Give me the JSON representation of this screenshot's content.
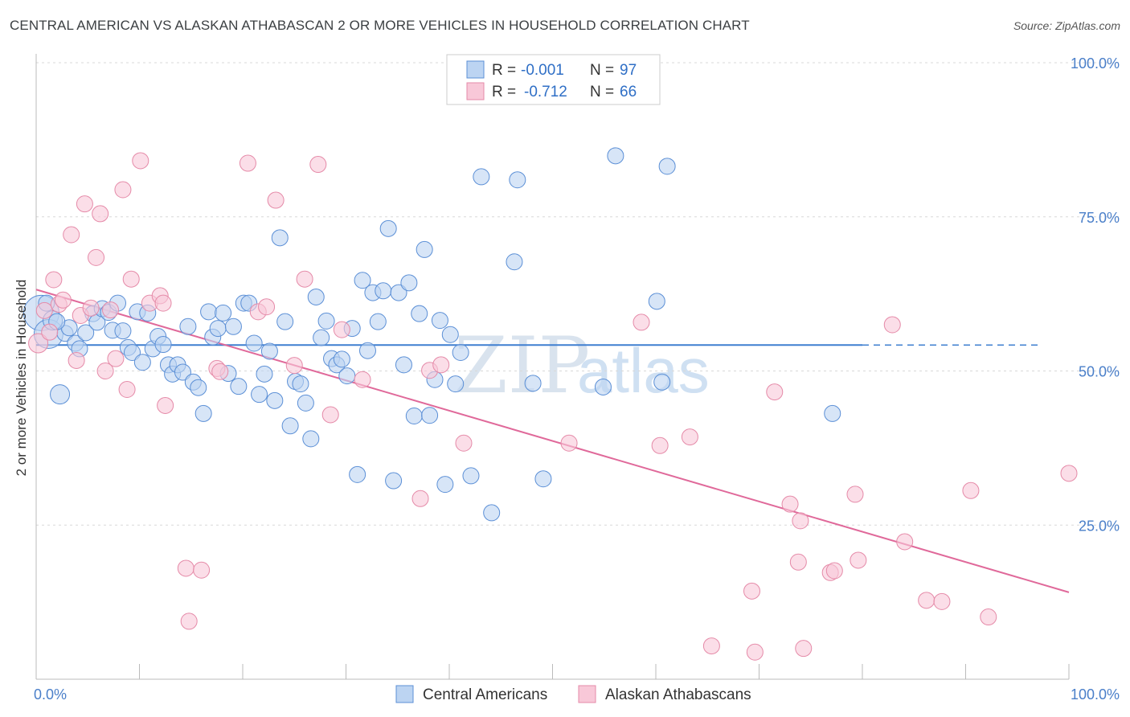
{
  "title": "CENTRAL AMERICAN VS ALASKAN ATHABASCAN 2 OR MORE VEHICLES IN HOUSEHOLD CORRELATION CHART",
  "source": "Source: ZipAtlas.com",
  "watermark": {
    "zip": "ZIP",
    "atlas": "atlas"
  },
  "colors": {
    "blue_fill": "#bcd4f2",
    "blue_stroke": "#5b8fd6",
    "blue_line": "#3f7fd0",
    "pink_fill": "#f8c8d8",
    "pink_stroke": "#e58aa8",
    "pink_line": "#e0699a",
    "grid": "#d8d8d8",
    "axis_label": "#4a7fc9"
  },
  "legend": {
    "rows": [
      {
        "r_label": "R =",
        "r_value": "-0.001",
        "n_label": "N =",
        "n_value": "97"
      },
      {
        "r_label": "R =",
        "r_value": "-0.712",
        "n_label": "N =",
        "n_value": "66"
      }
    ]
  },
  "bottom_legend": [
    "Central Americans",
    "Alaskan Athabascans"
  ],
  "chart_data": {
    "type": "scatter",
    "title": "CENTRAL AMERICAN VS ALASKAN ATHABASCAN 2 OR MORE VEHICLES IN HOUSEHOLD CORRELATION CHART",
    "xlabel": "",
    "ylabel": "2 or more Vehicles in Household",
    "xlim": [
      0,
      100
    ],
    "ylim": [
      0,
      100
    ],
    "x_tick_labels": [
      "0.0%",
      "100.0%"
    ],
    "y_ticks": [
      25,
      50,
      75,
      100
    ],
    "y_tick_labels": [
      "25.0%",
      "50.0%",
      "75.0%",
      "100.0%"
    ],
    "series": [
      {
        "name": "Central Americans",
        "color": "blue",
        "trend": {
          "x0": 0,
          "y0": 54.2,
          "x1": 80,
          "y1": 54.2,
          "dash_to": 97,
          "dash_y": 54.2
        },
        "points": [
          [
            0.5,
            59.4,
            22
          ],
          [
            1.2,
            56.0,
            18
          ],
          [
            1.6,
            58.2,
            12
          ],
          [
            2.3,
            46.2,
            12
          ],
          [
            2.8,
            56.1,
            10
          ],
          [
            3.2,
            57.0,
            10
          ],
          [
            3.8,
            54.5,
            10
          ],
          [
            4.2,
            53.6,
            10
          ],
          [
            4.8,
            56.2,
            10
          ],
          [
            5.5,
            59.3,
            10
          ],
          [
            5.9,
            57.9,
            10
          ],
          [
            6.4,
            60.1,
            10
          ],
          [
            7.0,
            59.5,
            10
          ],
          [
            7.4,
            56.6,
            10
          ],
          [
            7.9,
            61.0,
            10
          ],
          [
            8.4,
            56.5,
            10
          ],
          [
            8.9,
            53.8,
            10
          ],
          [
            9.3,
            53.0,
            10
          ],
          [
            9.8,
            59.6,
            10
          ],
          [
            10.3,
            51.4,
            10
          ],
          [
            10.8,
            59.4,
            10
          ],
          [
            11.3,
            53.6,
            10
          ],
          [
            11.8,
            55.6,
            10
          ],
          [
            12.3,
            54.3,
            10
          ],
          [
            12.8,
            51.0,
            10
          ],
          [
            13.2,
            49.5,
            10
          ],
          [
            13.7,
            51.0,
            10
          ],
          [
            14.2,
            49.8,
            10
          ],
          [
            14.7,
            57.2,
            10
          ],
          [
            15.2,
            48.2,
            10
          ],
          [
            15.7,
            47.3,
            10
          ],
          [
            16.2,
            43.1,
            10
          ],
          [
            16.7,
            59.6,
            10
          ],
          [
            17.1,
            55.5,
            10
          ],
          [
            17.6,
            56.9,
            10
          ],
          [
            18.1,
            59.4,
            10
          ],
          [
            18.6,
            49.6,
            10
          ],
          [
            19.1,
            57.2,
            10
          ],
          [
            19.6,
            47.5,
            10
          ],
          [
            20.1,
            61.0,
            10
          ],
          [
            20.6,
            61.0,
            10
          ],
          [
            21.1,
            54.5,
            10
          ],
          [
            21.6,
            46.2,
            10
          ],
          [
            22.1,
            49.5,
            10
          ],
          [
            22.6,
            53.2,
            10
          ],
          [
            23.1,
            45.2,
            10
          ],
          [
            23.6,
            71.6,
            10
          ],
          [
            24.1,
            58.0,
            10
          ],
          [
            24.6,
            41.1,
            10
          ],
          [
            25.1,
            48.3,
            10
          ],
          [
            25.6,
            47.9,
            10
          ],
          [
            26.1,
            44.8,
            10
          ],
          [
            26.6,
            39.0,
            10
          ],
          [
            27.1,
            62.0,
            10
          ],
          [
            27.6,
            55.4,
            10
          ],
          [
            28.1,
            58.1,
            10
          ],
          [
            28.6,
            52.0,
            10
          ],
          [
            29.1,
            51.0,
            10
          ],
          [
            29.6,
            51.9,
            10
          ],
          [
            30.1,
            49.2,
            10
          ],
          [
            30.6,
            56.9,
            10
          ],
          [
            31.1,
            33.2,
            10
          ],
          [
            31.6,
            64.7,
            10
          ],
          [
            32.1,
            53.3,
            10
          ],
          [
            32.6,
            62.7,
            10
          ],
          [
            33.1,
            58.0,
            10
          ],
          [
            33.6,
            63.0,
            10
          ],
          [
            34.1,
            73.1,
            10
          ],
          [
            34.6,
            32.2,
            10
          ],
          [
            35.1,
            62.7,
            10
          ],
          [
            35.6,
            51.0,
            10
          ],
          [
            36.1,
            64.3,
            10
          ],
          [
            36.6,
            42.7,
            10
          ],
          [
            37.1,
            59.3,
            10
          ],
          [
            37.6,
            69.7,
            10
          ],
          [
            38.1,
            42.8,
            10
          ],
          [
            38.6,
            48.6,
            10
          ],
          [
            39.1,
            58.2,
            10
          ],
          [
            39.6,
            31.6,
            10
          ],
          [
            40.1,
            55.9,
            10
          ],
          [
            40.6,
            47.9,
            10
          ],
          [
            41.1,
            53.0,
            10
          ],
          [
            42.1,
            33.0,
            10
          ],
          [
            43.1,
            81.5,
            10
          ],
          [
            44.1,
            27.0,
            10
          ],
          [
            46.6,
            81.0,
            10
          ],
          [
            46.3,
            67.7,
            10
          ],
          [
            48.1,
            48.0,
            10
          ],
          [
            49.1,
            32.5,
            10
          ],
          [
            54.9,
            47.4,
            10
          ],
          [
            56.1,
            84.9,
            10
          ],
          [
            60.1,
            61.3,
            10
          ],
          [
            60.6,
            48.2,
            10
          ],
          [
            61.1,
            83.2,
            10
          ],
          [
            77.1,
            43.1,
            10
          ],
          [
            1.0,
            61.0,
            10
          ],
          [
            2.0,
            58.0,
            10
          ]
        ]
      },
      {
        "name": "Alaskan Athabascans",
        "color": "pink",
        "trend": {
          "x0": 0,
          "y0": 63.2,
          "x1": 100,
          "y1": 14.1
        },
        "points": [
          [
            0.2,
            54.5,
            12
          ],
          [
            0.8,
            59.8,
            10
          ],
          [
            1.3,
            56.3,
            10
          ],
          [
            1.7,
            64.8,
            10
          ],
          [
            2.2,
            60.8,
            10
          ],
          [
            2.6,
            61.5,
            10
          ],
          [
            3.4,
            72.1,
            10
          ],
          [
            3.9,
            51.7,
            10
          ],
          [
            4.3,
            59.0,
            10
          ],
          [
            4.7,
            77.1,
            10
          ],
          [
            5.3,
            60.2,
            10
          ],
          [
            5.8,
            68.4,
            10
          ],
          [
            6.2,
            75.5,
            10
          ],
          [
            6.7,
            50.0,
            10
          ],
          [
            7.2,
            59.9,
            10
          ],
          [
            7.7,
            52.0,
            10
          ],
          [
            8.4,
            79.4,
            10
          ],
          [
            8.8,
            47.0,
            10
          ],
          [
            9.2,
            64.9,
            10
          ],
          [
            10.1,
            84.1,
            10
          ],
          [
            11.0,
            61.0,
            10
          ],
          [
            12.0,
            62.2,
            10
          ],
          [
            12.3,
            61.0,
            10
          ],
          [
            12.5,
            44.4,
            10
          ],
          [
            14.5,
            18.0,
            10
          ],
          [
            14.8,
            9.4,
            10
          ],
          [
            16.0,
            17.7,
            10
          ],
          [
            17.5,
            50.4,
            10
          ],
          [
            17.8,
            49.9,
            10
          ],
          [
            20.5,
            83.7,
            10
          ],
          [
            21.5,
            59.6,
            10
          ],
          [
            22.3,
            60.4,
            10
          ],
          [
            23.2,
            77.7,
            10
          ],
          [
            25.0,
            50.9,
            10
          ],
          [
            26.0,
            64.9,
            10
          ],
          [
            27.3,
            83.5,
            10
          ],
          [
            28.5,
            42.9,
            10
          ],
          [
            29.6,
            56.7,
            10
          ],
          [
            31.6,
            48.6,
            10
          ],
          [
            37.2,
            29.3,
            10
          ],
          [
            38.1,
            50.1,
            10
          ],
          [
            39.2,
            51.0,
            10
          ],
          [
            41.4,
            38.3,
            10
          ],
          [
            51.6,
            38.3,
            10
          ],
          [
            58.6,
            57.9,
            10
          ],
          [
            60.4,
            37.9,
            10
          ],
          [
            63.3,
            39.3,
            10
          ],
          [
            65.4,
            5.4,
            10
          ],
          [
            69.3,
            14.3,
            10
          ],
          [
            69.6,
            4.4,
            10
          ],
          [
            71.5,
            46.6,
            10
          ],
          [
            73.0,
            28.4,
            10
          ],
          [
            73.8,
            19.0,
            10
          ],
          [
            74.0,
            25.7,
            10
          ],
          [
            74.3,
            5.0,
            10
          ],
          [
            76.9,
            17.3,
            10
          ],
          [
            77.3,
            17.6,
            10
          ],
          [
            79.3,
            30.0,
            10
          ],
          [
            79.6,
            19.3,
            10
          ],
          [
            82.9,
            57.5,
            10
          ],
          [
            84.1,
            22.3,
            10
          ],
          [
            86.2,
            12.8,
            10
          ],
          [
            87.7,
            12.6,
            10
          ],
          [
            90.5,
            30.6,
            10
          ],
          [
            92.2,
            10.1,
            10
          ],
          [
            100.0,
            33.4,
            10
          ]
        ]
      }
    ]
  },
  "y_axis_title": "2 or more Vehicles in Household"
}
